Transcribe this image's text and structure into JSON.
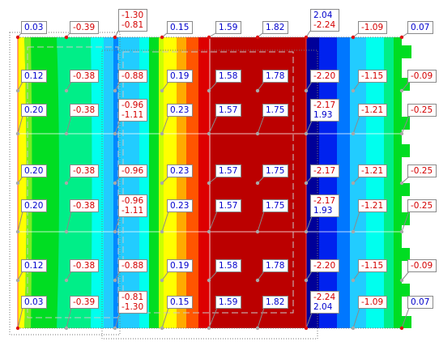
{
  "colors": {
    "negative_value": "#d40000",
    "positive_value": "#0000cc",
    "contour_bands": [
      "#0000aa",
      "#0022ee",
      "#0077ff",
      "#22ccff",
      "#00ffee",
      "#00ee88",
      "#00dd22",
      "#ccff00",
      "#ffff00",
      "#ffaa00",
      "#ff5500",
      "#dd0000",
      "#bb0000"
    ]
  },
  "rows": [
    {
      "name": "row-1",
      "labels": [
        {
          "lines": [
            "0.12"
          ]
        },
        {
          "lines": [
            "-0.38"
          ]
        },
        {
          "lines": [
            "-0.88"
          ]
        },
        {
          "lines": [
            "0.19"
          ]
        },
        {
          "lines": [
            "1.58"
          ]
        },
        {
          "lines": [
            "1.78"
          ]
        },
        {
          "lines": [
            "-2.20"
          ]
        },
        {
          "lines": [
            "-1.15"
          ]
        },
        {
          "lines": [
            "-0.09"
          ]
        }
      ]
    },
    {
      "name": "row-2",
      "labels": [
        {
          "lines": [
            "0.20"
          ]
        },
        {
          "lines": [
            "-0.38"
          ]
        },
        {
          "lines": [
            "-0.96",
            "-1.11"
          ]
        },
        {
          "lines": [
            "0.23"
          ]
        },
        {
          "lines": [
            "1.57"
          ]
        },
        {
          "lines": [
            "1.75"
          ]
        },
        {
          "lines": [
            "-2.17",
            "1.93"
          ]
        },
        {
          "lines": [
            "-1.21"
          ]
        },
        {
          "lines": [
            "-0.25"
          ]
        }
      ]
    },
    {
      "name": "row-3",
      "labels": [
        {
          "lines": [
            "0.20"
          ]
        },
        {
          "lines": [
            "-0.38"
          ]
        },
        {
          "lines": [
            "-0.96"
          ]
        },
        {
          "lines": [
            "0.23"
          ]
        },
        {
          "lines": [
            "1.57"
          ]
        },
        {
          "lines": [
            "1.75"
          ]
        },
        {
          "lines": [
            "-2.17"
          ]
        },
        {
          "lines": [
            "-1.21"
          ]
        },
        {
          "lines": [
            "-0.25"
          ]
        }
      ]
    },
    {
      "name": "row-4",
      "labels": [
        {
          "lines": [
            "0.20"
          ]
        },
        {
          "lines": [
            "-0.38"
          ]
        },
        {
          "lines": [
            "-0.96",
            "-1.11"
          ]
        },
        {
          "lines": [
            "0.23"
          ]
        },
        {
          "lines": [
            "1.57"
          ]
        },
        {
          "lines": [
            "1.75"
          ]
        },
        {
          "lines": [
            "-2.17",
            "1.93"
          ]
        },
        {
          "lines": [
            "-1.21"
          ]
        },
        {
          "lines": [
            "-0.25"
          ]
        }
      ]
    },
    {
      "name": "row-5",
      "labels": [
        {
          "lines": [
            "0.12"
          ]
        },
        {
          "lines": [
            "-0.38"
          ]
        },
        {
          "lines": [
            "-0.88"
          ]
        },
        {
          "lines": [
            "0.19"
          ]
        },
        {
          "lines": [
            "1.58"
          ]
        },
        {
          "lines": [
            "1.78"
          ]
        },
        {
          "lines": [
            "-2.20"
          ]
        },
        {
          "lines": [
            "-1.15"
          ]
        },
        {
          "lines": [
            "-0.09"
          ]
        }
      ]
    },
    {
      "name": "row-6",
      "labels": [
        {
          "lines": [
            "0.03"
          ]
        },
        {
          "lines": [
            "-0.39"
          ]
        },
        {
          "lines": [
            "-0.81",
            "-1.30"
          ]
        },
        {
          "lines": [
            "0.15"
          ]
        },
        {
          "lines": [
            "1.59"
          ]
        },
        {
          "lines": [
            "1.82"
          ]
        },
        {
          "lines": [
            "-2.24",
            "2.04"
          ]
        },
        {
          "lines": [
            "-1.09"
          ]
        },
        {
          "lines": [
            "0.07"
          ]
        }
      ]
    }
  ],
  "top_edge": {
    "labels": [
      {
        "lines": [
          "0.03"
        ]
      },
      {
        "lines": [
          "-0.39"
        ]
      },
      {
        "lines": [
          "-1.30",
          "-0.81"
        ]
      },
      {
        "lines": [
          "0.15"
        ]
      },
      {
        "lines": [
          "1.59"
        ]
      },
      {
        "lines": [
          "1.82"
        ]
      },
      {
        "lines": [
          "2.04",
          "-2.24"
        ]
      },
      {
        "lines": [
          "-1.09"
        ]
      },
      {
        "lines": [
          "0.07"
        ]
      }
    ]
  }
}
